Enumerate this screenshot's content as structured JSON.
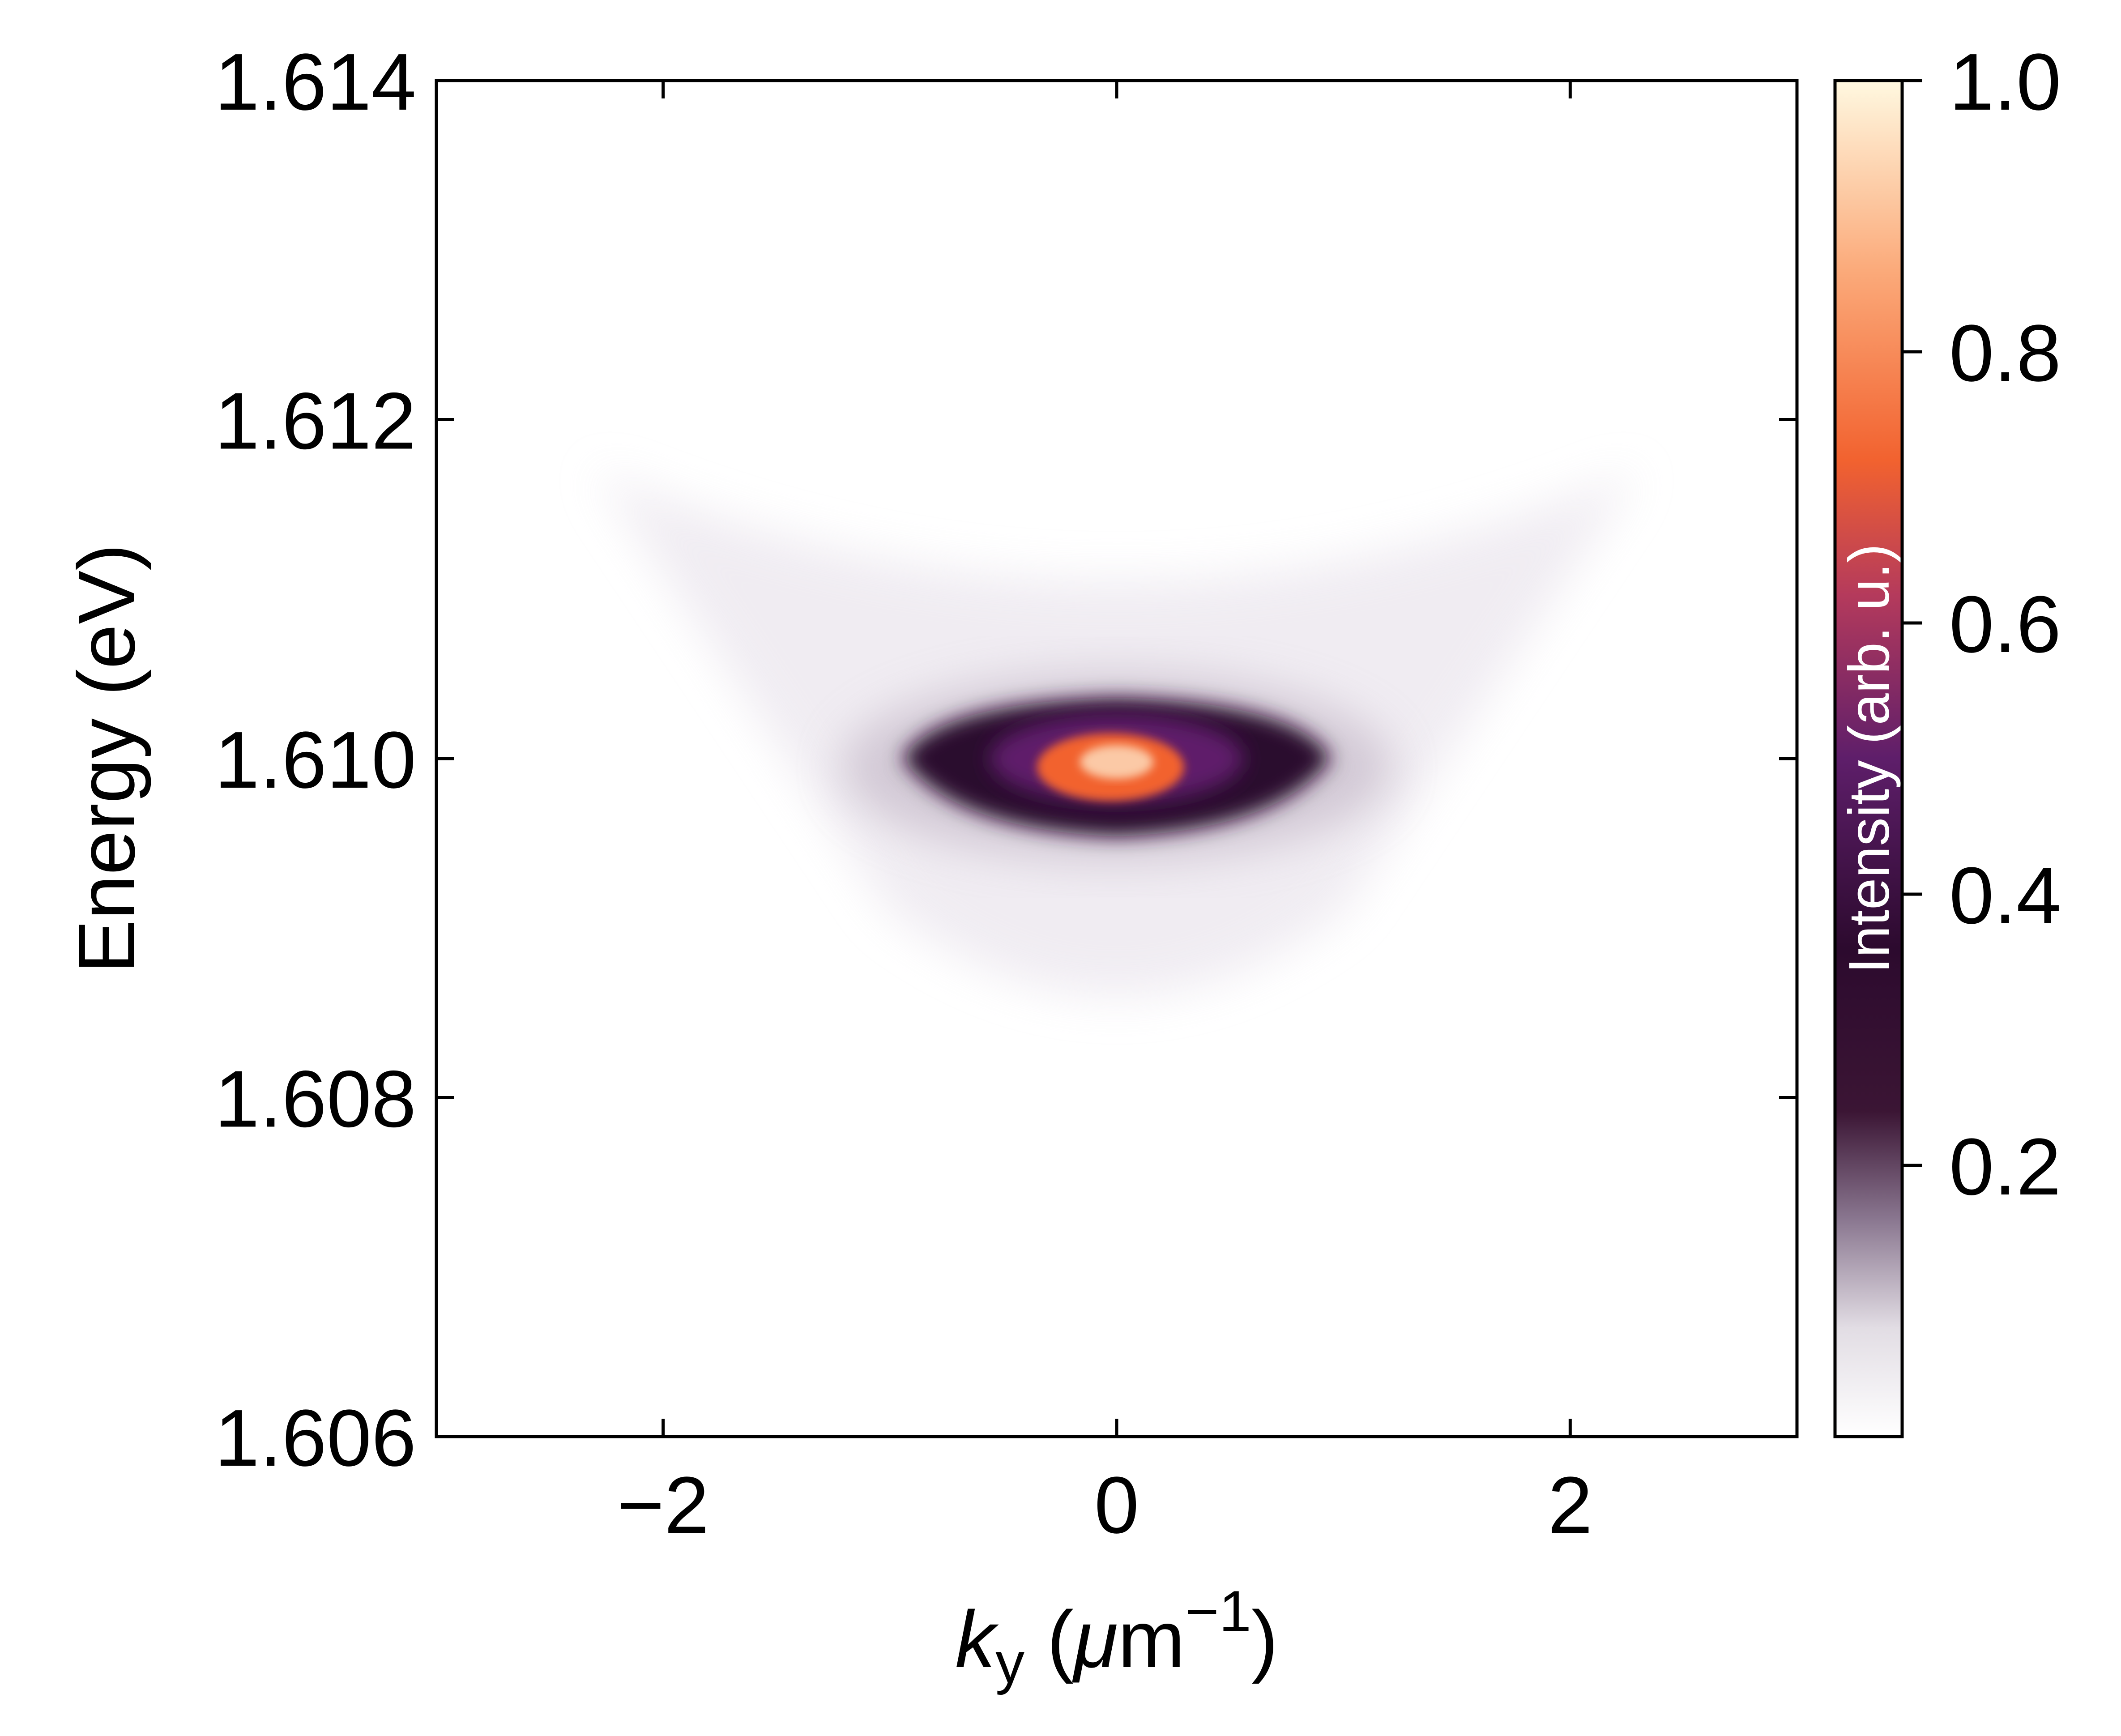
{
  "chart_data": {
    "type": "heatmap",
    "title": "",
    "xlabel": {
      "symbol": "k",
      "subscript": "y",
      "unit_open": " (",
      "unit_mu": "μ",
      "unit_m": "m",
      "superscript": "−1",
      "unit_close": ")"
    },
    "ylabel": "Energy (eV)",
    "xlim": [
      -3,
      3
    ],
    "ylim": [
      1.606,
      1.614
    ],
    "xticks": [
      -2,
      0,
      2
    ],
    "xtick_labels": [
      "−2",
      "0",
      "2"
    ],
    "yticks": [
      1.606,
      1.608,
      1.61,
      1.612,
      1.614
    ],
    "ytick_labels": [
      "1.606",
      "1.608",
      "1.610",
      "1.612",
      "1.614"
    ],
    "colorbar": {
      "label": "Intensity (arb. u.)",
      "range": [
        0.0,
        1.0
      ],
      "ticks": [
        0.2,
        0.4,
        0.6,
        0.8,
        1.0
      ],
      "tick_labels": [
        "0.2",
        "0.4",
        "0.6",
        "0.8",
        "1.0"
      ],
      "colormap_stops": [
        {
          "v": 0.0,
          "color": "#ffffff"
        },
        {
          "v": 0.08,
          "color": "#e2dde4"
        },
        {
          "v": 0.16,
          "color": "#8a7790"
        },
        {
          "v": 0.24,
          "color": "#3b1534"
        },
        {
          "v": 0.36,
          "color": "#2c0a2e"
        },
        {
          "v": 0.5,
          "color": "#5e1e6a"
        },
        {
          "v": 0.62,
          "color": "#b43a5c"
        },
        {
          "v": 0.72,
          "color": "#f2622f"
        },
        {
          "v": 0.86,
          "color": "#fbaa7a"
        },
        {
          "v": 1.0,
          "color": "#fff8e0"
        }
      ]
    },
    "features": {
      "band_center_energy": 1.61,
      "band_halfwidth_k": 0.9,
      "peak_k": 0.0,
      "peak_energy": 1.6099,
      "faint_dispersion_edges_k": [
        -2.3,
        2.3
      ],
      "faint_dispersion_top_energy": 1.6117,
      "faint_dispersion_bottom_energy": 1.6084
    },
    "grid": false,
    "tick_direction": "in"
  }
}
